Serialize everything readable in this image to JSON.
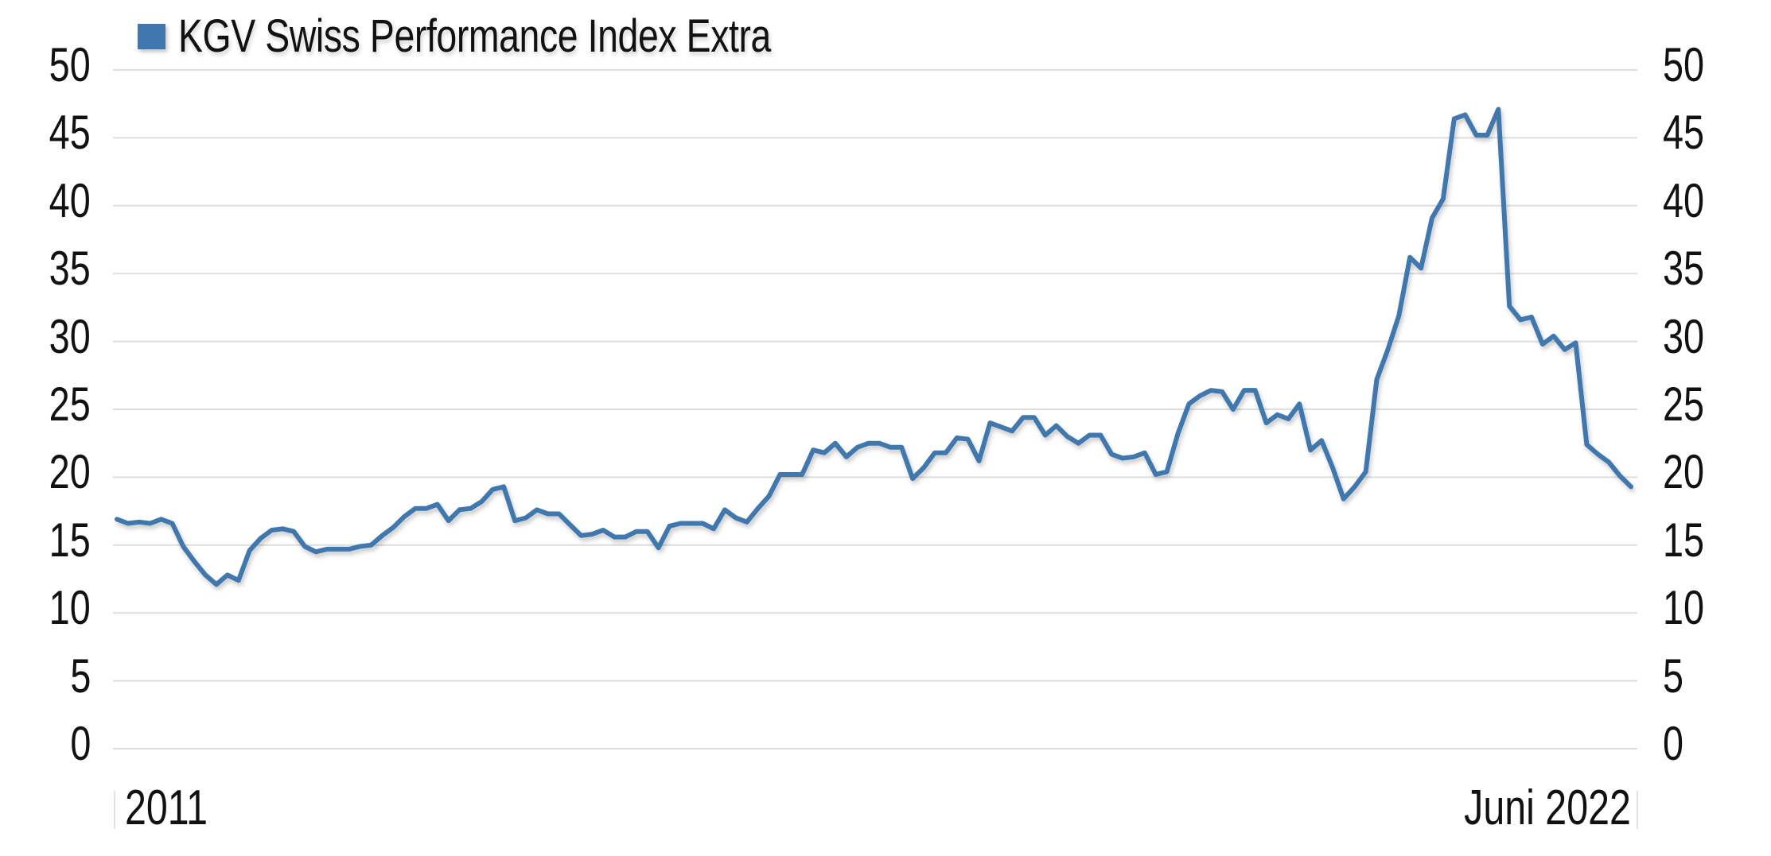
{
  "legend": {
    "label": "KGV Swiss Performance Index Extra",
    "color": "#3f78ae"
  },
  "axes": {
    "y_left_ticks": [
      "50",
      "45",
      "40",
      "35",
      "30",
      "25",
      "20",
      "15",
      "10",
      "5",
      "0"
    ],
    "y_right_ticks": [
      "50",
      "45",
      "40",
      "35",
      "30",
      "25",
      "20",
      "15",
      "10",
      "5",
      "0"
    ],
    "x_start_label": "2011",
    "x_end_label": "Juni 2022"
  },
  "colors": {
    "line": "#3f78ae",
    "grid": "#dedede",
    "text": "#111111"
  },
  "chart_data": {
    "type": "line",
    "title": "",
    "xlabel": "",
    "ylabel": "",
    "ylim": [
      0,
      50
    ],
    "yticks": [
      0,
      5,
      10,
      15,
      20,
      25,
      30,
      35,
      40,
      45,
      50
    ],
    "dual_y_axis": true,
    "grid": true,
    "legend_position": "top-left",
    "x_range": [
      "2011",
      "Juni 2022"
    ],
    "x_tick_labels": [
      "2011",
      "Juni 2022"
    ],
    "series": [
      {
        "name": "KGV Swiss Performance Index Extra",
        "color": "#3f78ae",
        "frequency": "monthly (approx.)",
        "values": [
          16.9,
          16.6,
          16.7,
          16.6,
          16.9,
          16.6,
          14.9,
          13.8,
          12.8,
          12.1,
          12.8,
          12.4,
          14.6,
          15.5,
          16.1,
          16.2,
          16.0,
          14.9,
          14.5,
          14.7,
          14.7,
          14.7,
          14.9,
          15.0,
          15.7,
          16.3,
          17.1,
          17.7,
          17.7,
          18.0,
          16.8,
          17.6,
          17.7,
          18.2,
          19.1,
          19.3,
          16.8,
          17.0,
          17.6,
          17.3,
          17.3,
          16.5,
          15.7,
          15.8,
          16.1,
          15.6,
          15.6,
          16.0,
          16.0,
          14.8,
          16.4,
          16.6,
          16.6,
          16.6,
          16.2,
          17.6,
          17.0,
          16.7,
          17.7,
          18.6,
          20.2,
          20.2,
          20.2,
          22.0,
          21.8,
          22.5,
          21.5,
          22.2,
          22.5,
          22.5,
          22.2,
          22.2,
          19.9,
          20.7,
          21.8,
          21.8,
          22.9,
          22.8,
          21.2,
          24.0,
          23.7,
          23.4,
          24.4,
          24.4,
          23.1,
          23.8,
          23.0,
          22.5,
          23.1,
          23.1,
          21.7,
          21.4,
          21.5,
          21.8,
          20.2,
          20.4,
          23.2,
          25.4,
          26.0,
          26.4,
          26.3,
          25.0,
          26.4,
          26.4,
          24.0,
          24.6,
          24.3,
          25.4,
          22.0,
          22.7,
          20.7,
          18.4,
          19.3,
          20.4,
          27.2,
          29.4,
          31.9,
          36.2,
          35.4,
          39.1,
          40.5,
          46.4,
          46.7,
          45.2,
          45.2,
          47.1,
          32.6,
          31.6,
          31.8,
          29.8,
          30.4,
          29.4,
          29.9,
          22.4,
          21.7,
          21.1,
          20.1,
          19.3
        ]
      }
    ]
  }
}
